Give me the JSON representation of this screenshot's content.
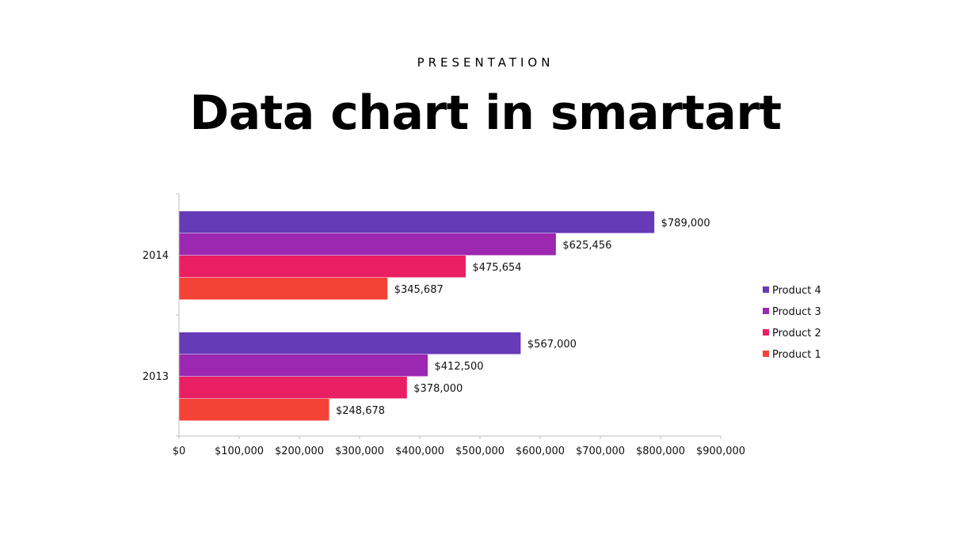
{
  "header": {
    "kicker": "PRESENTATION",
    "title": "Data chart in smartart"
  },
  "chart_data": {
    "type": "bar",
    "orientation": "horizontal",
    "categories": [
      "2013",
      "2014"
    ],
    "series": [
      {
        "name": "Product 1",
        "values": [
          248678,
          345687
        ],
        "labels": [
          "$248,678",
          "$345,687"
        ],
        "color": "#f44336"
      },
      {
        "name": "Product 2",
        "values": [
          378000,
          475654
        ],
        "labels": [
          "$378,000",
          "$475,654"
        ],
        "color": "#e91e63"
      },
      {
        "name": "Product 3",
        "values": [
          412500,
          625456
        ],
        "labels": [
          "$412,500",
          "$625,456"
        ],
        "color": "#9c27b0"
      },
      {
        "name": "Product 4",
        "values": [
          567000,
          789000
        ],
        "labels": [
          "$567,000",
          "$789,000"
        ],
        "color": "#673ab7"
      }
    ],
    "x_ticks": [
      {
        "value": 0,
        "label": "$0"
      },
      {
        "value": 100000,
        "label": "$100,000"
      },
      {
        "value": 200000,
        "label": "$200,000"
      },
      {
        "value": 300000,
        "label": "$300,000"
      },
      {
        "value": 400000,
        "label": "$400,000"
      },
      {
        "value": 500000,
        "label": "$500,000"
      },
      {
        "value": 600000,
        "label": "$600,000"
      },
      {
        "value": 700000,
        "label": "$700,000"
      },
      {
        "value": 800000,
        "label": "$800,000"
      },
      {
        "value": 900000,
        "label": "$900,000"
      }
    ],
    "xlim": [
      0,
      900000
    ],
    "legend_order": [
      "Product 4",
      "Product 3",
      "Product 2",
      "Product 1"
    ],
    "legend_position": "right",
    "grid": false
  }
}
